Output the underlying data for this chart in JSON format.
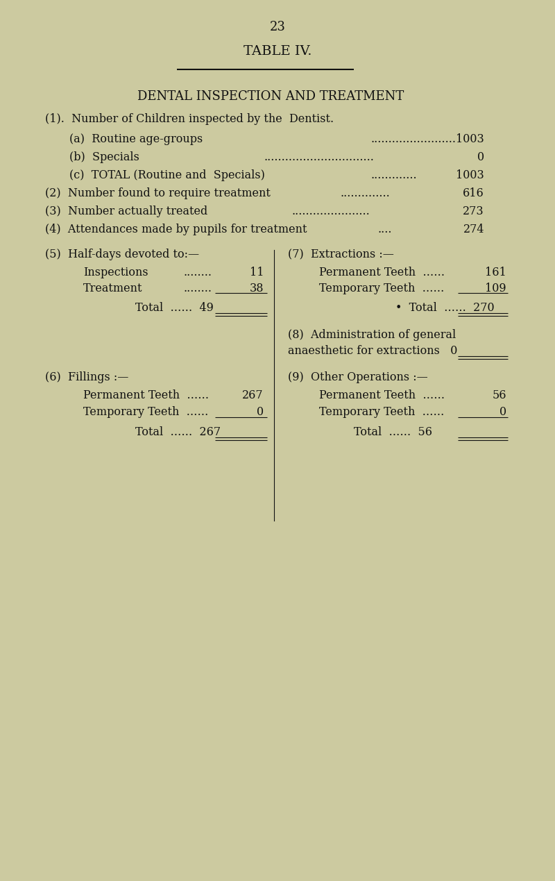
{
  "page_number": "23",
  "title": "TABLE IV.",
  "subtitle": "DENTAL INSPECTION AND TREATMENT",
  "background_color": "#cccaa0",
  "text_color": "#111111",
  "section1_header": "(1).  Number of Children inspected by the  Dentist.",
  "s1a_label": "(a)  Routine age-groups",
  "s1a_dots": "  ······················",
  "s1a_val": "1003",
  "s1b_label": "(b)  Specials",
  "s1b_dots": "  ·····························",
  "s1b_val": "0",
  "s1c_label": "(c)  TOTAL (Routine and  Specials)",
  "s1c_dots": "  ···············",
  "s1c_val": "1003",
  "s2_label": "(2)  Number found to require treatment",
  "s2_dots": "  ··············",
  "s2_val": "616",
  "s3_label": "(3)  Number actually treated",
  "s3_dots": "  ······················",
  "s3_val": "273",
  "s4_label": "(4)  Attendances made by pupils for treatment",
  "s4_dots": "    ·····",
  "s4_val": "274",
  "s5_header": "(5)  Half-days devoted to:—",
  "s5_insp_label": "Inspections",
  "s5_insp_dots": "  ········",
  "s5_insp_val": "11",
  "s5_treat_label": "Treatment",
  "s5_treat_dots": "  ········",
  "s5_treat_val": "38",
  "s5_total_label": "Total  ……",
  "s5_total_val": "49",
  "s6_header": "(6)  Fillings :—",
  "s6_perm_label": "Permanent Teeth  ……",
  "s6_perm_val": "267",
  "s6_temp_label": "Temporary Teeth  ……",
  "s6_temp_val": "0",
  "s6_total_label": "Total  ……",
  "s6_total_val": "267",
  "s7_header": "(7)  Extractions :—",
  "s7_perm_label": "Permanent Teeth  ……",
  "s7_perm_val": "161",
  "s7_temp_label": "Temporary Teeth  ……",
  "s7_temp_val": "109",
  "s7_total_label": "Total  ……",
  "s7_total_val": "270",
  "s8_line1": "(8)  Administration of general",
  "s8_line2": "anaesthetic for extractions",
  "s8_val": "0",
  "s9_header": "(9)  Other Operations :—",
  "s9_perm_label": "Permanent Teeth  ……",
  "s9_perm_val": "56",
  "s9_temp_label": "Temporary Teeth  ……",
  "s9_temp_val": "0",
  "s9_total_label": "Total",
  "s9_total_dots": "  ……",
  "s9_total_val": "56"
}
